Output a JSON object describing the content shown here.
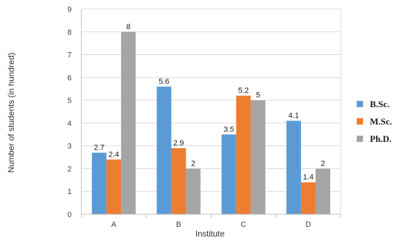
{
  "chart_data": {
    "type": "bar",
    "title": "",
    "xlabel": "Institute",
    "ylabel": "Number of students (in hundred)",
    "categories": [
      "A",
      "B",
      "C",
      "D"
    ],
    "ylim": [
      0,
      9
    ],
    "yticks": [
      0,
      1,
      2,
      3,
      4,
      5,
      6,
      7,
      8,
      9
    ],
    "grid": true,
    "legend_position": "right",
    "series": [
      {
        "name": "B.Sc.",
        "color": "#5b9bd5",
        "values": [
          2.7,
          5.6,
          3.5,
          4.1
        ]
      },
      {
        "name": "M.Sc.",
        "color": "#ed7d31",
        "values": [
          2.4,
          2.9,
          5.2,
          1.4
        ]
      },
      {
        "name": "Ph.D.",
        "color": "#a5a5a5",
        "values": [
          8,
          2,
          5,
          2
        ]
      }
    ]
  }
}
